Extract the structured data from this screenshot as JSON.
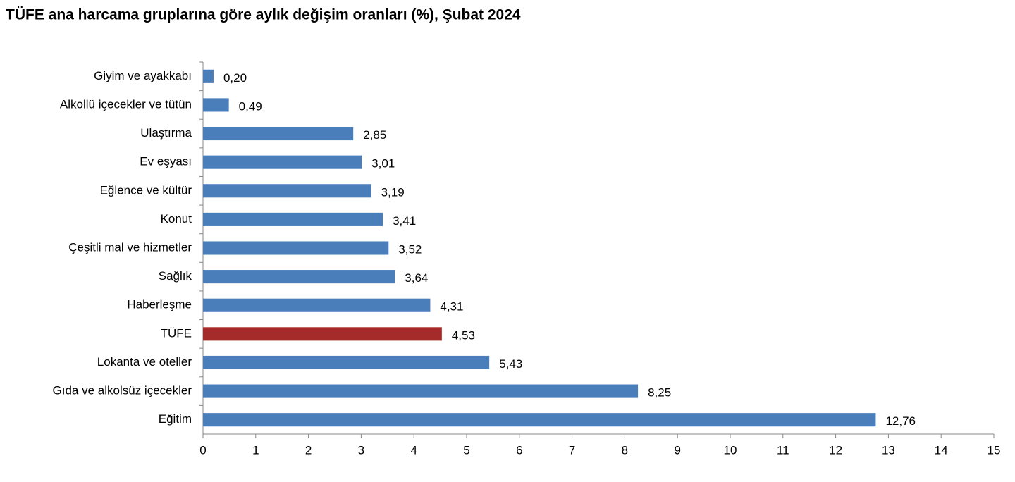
{
  "chart_data": {
    "type": "bar",
    "orientation": "horizontal",
    "title": "TÜFE ana harcama gruplarına göre aylık değişim oranları (%), Şubat 2024",
    "categories": [
      "Giyim ve ayakkabı",
      "Alkollü içecekler ve tütün",
      "Ulaştırma",
      "Ev eşyası",
      "Eğlence ve kültür",
      "Konut",
      "Çeşitli mal ve hizmetler",
      "Sağlık",
      "Haberleşme",
      "TÜFE",
      "Lokanta ve oteller",
      "Gıda ve alkolsüz içecekler",
      "Eğitim"
    ],
    "values": [
      0.2,
      0.49,
      2.85,
      3.01,
      3.19,
      3.41,
      3.52,
      3.64,
      4.31,
      4.53,
      5.43,
      8.25,
      12.76
    ],
    "value_labels": [
      "0,20",
      "0,49",
      "2,85",
      "3,01",
      "3,19",
      "3,41",
      "3,52",
      "3,64",
      "4,31",
      "4,53",
      "5,43",
      "8,25",
      "12,76"
    ],
    "colors": [
      "#4a7ebb",
      "#4a7ebb",
      "#4a7ebb",
      "#4a7ebb",
      "#4a7ebb",
      "#4a7ebb",
      "#4a7ebb",
      "#4a7ebb",
      "#4a7ebb",
      "#a52a2a",
      "#4a7ebb",
      "#4a7ebb",
      "#4a7ebb"
    ],
    "xlim": [
      0,
      15
    ],
    "xticks": [
      0,
      1,
      2,
      3,
      4,
      5,
      6,
      7,
      8,
      9,
      10,
      11,
      12,
      13,
      14,
      15
    ],
    "grid": false
  }
}
